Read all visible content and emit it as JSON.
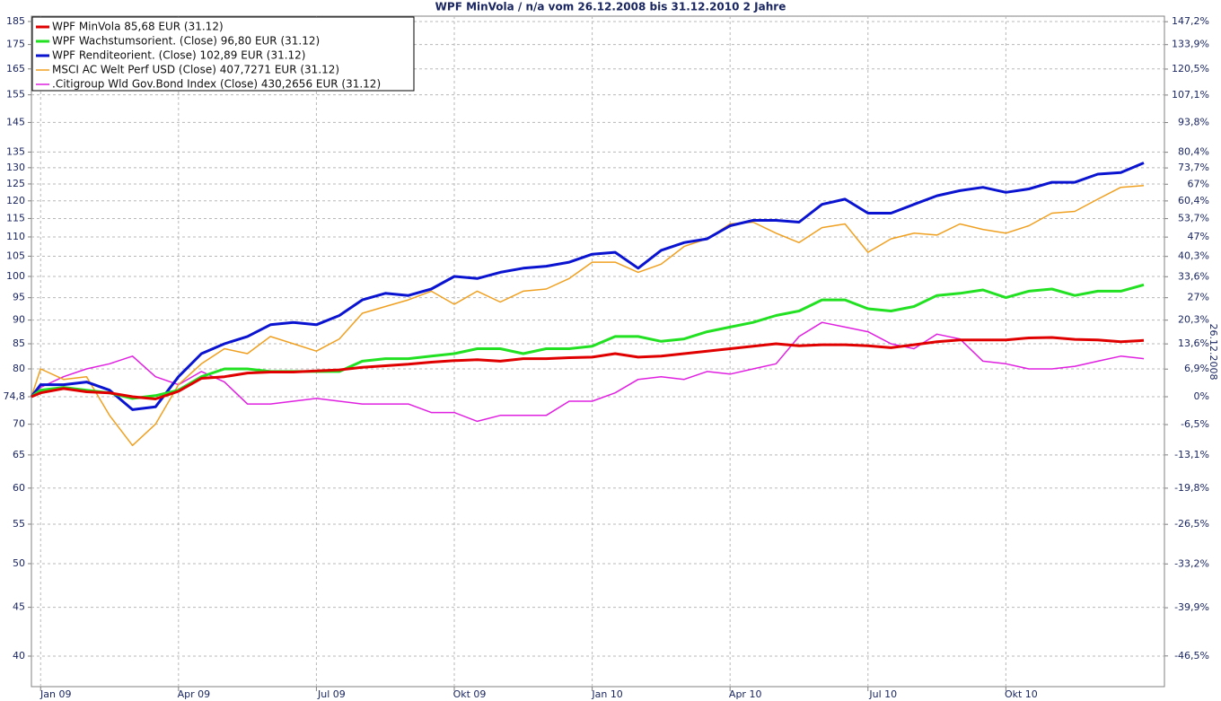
{
  "chart_data": {
    "type": "line",
    "title": "WPF MinVola / n/a vom 26.12.2008 bis 31.12.2010 2 Jahre",
    "y2_label": "26.12.2008",
    "log_scale": true,
    "grid": true,
    "legend": "upper left",
    "x": [
      -0.2,
      0,
      0.5,
      1,
      1.5,
      2,
      2.5,
      3,
      3.5,
      4,
      4.5,
      5,
      5.5,
      6,
      6.5,
      7,
      7.5,
      8,
      8.5,
      9,
      9.5,
      10,
      10.5,
      11,
      11.5,
      12,
      12.5,
      13,
      13.5,
      14,
      14.5,
      15,
      15.5,
      16,
      16.5,
      17,
      17.5,
      18,
      18.5,
      19,
      19.5,
      20,
      20.5,
      21,
      21.5,
      22,
      22.5,
      23,
      23.5,
      24
    ],
    "xlim": [
      -0.2,
      24.45
    ],
    "xticks": [
      {
        "value": 0,
        "label": "Jan 09"
      },
      {
        "value": 3,
        "label": "Apr 09"
      },
      {
        "value": 6,
        "label": "Jul 09"
      },
      {
        "value": 9,
        "label": "Okt 09"
      },
      {
        "value": 12,
        "label": "Jan 10"
      },
      {
        "value": 15,
        "label": "Apr 10"
      },
      {
        "value": 18,
        "label": "Jul 10"
      },
      {
        "value": 21,
        "label": "Okt 10"
      }
    ],
    "ylim": [
      37.16,
      187.4
    ],
    "yticks": [
      185,
      175,
      165,
      155,
      145,
      135,
      130,
      125,
      120,
      115,
      110,
      105,
      100,
      95,
      90,
      85,
      80,
      {
        "value": 74.8,
        "label": "74,8"
      },
      70,
      65,
      60,
      55,
      50,
      45,
      40
    ],
    "y2lim": [
      -50.32,
      150.53
    ],
    "y2ticks": [
      {
        "value": 147.2,
        "label": "147,2%"
      },
      {
        "value": 133.9,
        "label": "133,9%"
      },
      {
        "value": 120.5,
        "label": "120,5%"
      },
      {
        "value": 107.1,
        "label": "107,1%"
      },
      {
        "value": 93.8,
        "label": "93,8%"
      },
      {
        "value": 80.4,
        "label": "80,4%"
      },
      {
        "value": 73.7,
        "label": "73,7%"
      },
      {
        "value": 67,
        "label": "67%"
      },
      {
        "value": 60.4,
        "label": "60,4%"
      },
      {
        "value": 53.7,
        "label": "53,7%"
      },
      {
        "value": 47,
        "label": "47%"
      },
      {
        "value": 40.3,
        "label": "40,3%"
      },
      {
        "value": 33.6,
        "label": "33,6%"
      },
      {
        "value": 27,
        "label": "27%"
      },
      {
        "value": 20.3,
        "label": "20,3%"
      },
      {
        "value": 13.6,
        "label": "13,6%"
      },
      {
        "value": 6.9,
        "label": "6,9%"
      },
      {
        "value": 0,
        "label": "0%"
      },
      {
        "value": -6.5,
        "label": "-6,5%"
      },
      {
        "value": -13.1,
        "label": "-13,1%"
      },
      {
        "value": -19.8,
        "label": "-19,8%"
      },
      {
        "value": -26.5,
        "label": "-26,5%"
      },
      {
        "value": -33.2,
        "label": "-33,2%"
      },
      {
        "value": -39.9,
        "label": "-39,9%"
      },
      {
        "value": -46.5,
        "label": "-46,5%"
      }
    ],
    "series": [
      {
        "name": "WPF MinVola 85,68 EUR (31.12)",
        "color": "#e00000",
        "line_width": 3,
        "values": [
          74.8,
          75.5,
          76.3,
          75.7,
          75.5,
          74.8,
          74.4,
          75.8,
          78.2,
          78.5,
          79.2,
          79.4,
          79.4,
          79.6,
          79.8,
          80.3,
          80.6,
          80.9,
          81.3,
          81.6,
          81.8,
          81.5,
          82,
          82,
          82.2,
          82.3,
          83,
          82.3,
          82.5,
          83,
          83.5,
          84,
          84.5,
          85,
          84.6,
          84.8,
          84.8,
          84.6,
          84.2,
          84.8,
          85.4,
          85.8,
          85.8,
          85.8,
          86.2,
          86.3,
          85.9,
          85.8,
          85.4,
          85.68
        ]
      },
      {
        "name": "WPF Wachstumsorient. (Close) 96,80 EUR (31.12)",
        "color": "#22e022",
        "line_width": 3,
        "values": [
          74.8,
          76,
          76.5,
          76,
          75.5,
          74.5,
          75,
          76,
          78.5,
          80,
          80,
          79.5,
          79.5,
          79.5,
          79.5,
          81.5,
          82,
          82,
          82.5,
          83,
          84,
          84,
          83,
          84,
          84,
          84.5,
          86.5,
          86.5,
          85.5,
          86,
          87.5,
          88.5,
          89.5,
          91,
          92,
          94.5,
          94.5,
          92.5,
          92,
          93,
          95.5,
          96,
          96.8,
          95,
          96.5,
          97,
          95.5,
          96.5,
          96.5,
          98
        ]
      },
      {
        "name": "WPF Renditeorient. (Close) 102,89 EUR (31.12)",
        "color": "#0a14d0",
        "line_width": 3,
        "values": [
          74.8,
          77,
          77,
          77.5,
          76,
          72.5,
          73,
          78.5,
          83,
          85,
          86.5,
          89,
          89.5,
          89,
          91,
          94.5,
          96,
          95.5,
          97,
          100,
          99.5,
          101,
          102,
          102.5,
          103.5,
          105.5,
          106,
          102,
          106.5,
          108.5,
          109.5,
          113,
          114.5,
          114.5,
          114,
          119,
          120.5,
          116.5,
          116.5,
          119,
          121.5,
          123,
          124,
          122.5,
          123.5,
          125.5,
          125.5,
          128,
          128.5,
          131.5
        ]
      },
      {
        "name": "MSCI AC Welt Perf USD (Close) 407,7271 EUR (31.12)",
        "color": "#f0a020",
        "line_width": 1.5,
        "values": [
          74.8,
          80,
          78,
          78.5,
          71.5,
          66.5,
          70,
          77,
          81,
          84,
          83,
          86.5,
          85,
          83.5,
          86,
          91.5,
          93,
          94.5,
          96.5,
          93.5,
          96.5,
          94,
          96.5,
          97,
          99.5,
          103.5,
          103.5,
          101,
          103,
          107.5,
          109.5,
          113.5,
          114,
          111,
          108.5,
          112.5,
          113.5,
          106,
          109.5,
          111,
          110.5,
          113.5,
          112,
          111,
          113,
          116.5,
          117,
          120.5,
          124,
          124.5
        ]
      },
      {
        "name": ".Citigroup Wld Gov.Bond Index (Close) 430,2656 EUR (31.12)",
        "color": "#e020e0",
        "line_width": 1.5,
        "values": [
          74.8,
          76.5,
          78.5,
          80,
          81,
          82.5,
          78.5,
          77,
          79.5,
          77.5,
          73.5,
          73.5,
          74,
          74.5,
          74,
          73.5,
          73.5,
          73.5,
          72,
          72,
          70.5,
          71.5,
          71.5,
          71.5,
          74,
          74,
          75.5,
          78,
          78.5,
          78,
          79.5,
          79,
          80,
          81,
          86.5,
          89.5,
          88.5,
          87.5,
          85,
          84,
          87,
          86,
          81.5,
          81,
          80,
          80,
          80.5,
          81.5,
          82.5,
          82
        ]
      }
    ]
  }
}
